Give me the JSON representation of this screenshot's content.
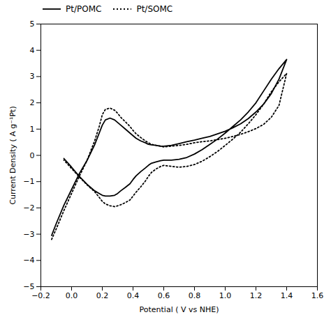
{
  "chart_data": {
    "type": "line",
    "xlabel": "Potential ( V vs NHE)",
    "ylabel": "Current Density ( A g⁻¹Pt)",
    "xlim": [
      -0.2,
      1.6
    ],
    "ylim": [
      -5,
      5
    ],
    "xticks": [
      -0.2,
      {
        "value": 0.0,
        "label": "0.0"
      },
      0.2,
      0.4,
      0.6,
      0.8,
      {
        "value": 1.0,
        "label": "1.0"
      },
      1.2,
      1.4,
      1.6
    ],
    "yticks": [
      -5,
      -4,
      -3,
      -2,
      -1,
      0,
      1,
      2,
      3,
      4,
      5
    ],
    "legend": "upper left",
    "x": [
      -0.13,
      -0.1,
      -0.05,
      0.0,
      0.05,
      0.1,
      0.15,
      0.18,
      0.2,
      0.22,
      0.25,
      0.28,
      0.3,
      0.32,
      0.35,
      0.38,
      0.4,
      0.42,
      0.45,
      0.48,
      0.5,
      0.52,
      0.55,
      0.58,
      0.6,
      0.65,
      0.7,
      0.75,
      0.8,
      0.85,
      0.9,
      0.95,
      1.0,
      1.05,
      1.1,
      1.15,
      1.2,
      1.25,
      1.3,
      1.35,
      1.4,
      1.4,
      1.35,
      1.3,
      1.25,
      1.2,
      1.15,
      1.1,
      1.05,
      1.0,
      0.95,
      0.9,
      0.85,
      0.8,
      0.75,
      0.7,
      0.65,
      0.6,
      0.58,
      0.55,
      0.52,
      0.5,
      0.48,
      0.45,
      0.42,
      0.4,
      0.38,
      0.35,
      0.32,
      0.3,
      0.28,
      0.25,
      0.22,
      0.2,
      0.18,
      0.15,
      0.1,
      0.05,
      0.0,
      -0.05
    ],
    "series": [
      {
        "name": "Pt/POMC",
        "color": "black",
        "line_style": "solid",
        "values": [
          -3.05,
          -2.6,
          -1.9,
          -1.3,
          -0.7,
          -0.2,
          0.4,
          0.85,
          1.15,
          1.35,
          1.42,
          1.35,
          1.25,
          1.15,
          1.0,
          0.85,
          0.75,
          0.65,
          0.55,
          0.48,
          0.42,
          0.4,
          0.38,
          0.35,
          0.35,
          0.38,
          0.45,
          0.52,
          0.58,
          0.65,
          0.72,
          0.82,
          0.92,
          1.05,
          1.2,
          1.4,
          1.65,
          1.95,
          2.35,
          2.9,
          3.65,
          3.65,
          3.3,
          2.9,
          2.45,
          2.0,
          1.65,
          1.35,
          1.1,
          0.85,
          0.62,
          0.42,
          0.22,
          0.05,
          -0.08,
          -0.15,
          -0.18,
          -0.18,
          -0.2,
          -0.25,
          -0.3,
          -0.38,
          -0.48,
          -0.62,
          -0.78,
          -0.92,
          -1.08,
          -1.22,
          -1.35,
          -1.45,
          -1.52,
          -1.55,
          -1.55,
          -1.52,
          -1.45,
          -1.35,
          -1.1,
          -0.8,
          -0.45,
          -0.12
        ]
      },
      {
        "name": "Pt/SOMC",
        "color": "black",
        "line_style": "dotted",
        "values": [
          -3.2,
          -2.8,
          -2.1,
          -1.45,
          -0.8,
          -0.2,
          0.55,
          1.1,
          1.55,
          1.75,
          1.8,
          1.72,
          1.6,
          1.45,
          1.28,
          1.1,
          0.95,
          0.82,
          0.68,
          0.55,
          0.48,
          0.42,
          0.38,
          0.35,
          0.32,
          0.35,
          0.38,
          0.42,
          0.48,
          0.52,
          0.55,
          0.6,
          0.65,
          0.72,
          0.8,
          0.9,
          1.02,
          1.18,
          1.45,
          1.9,
          3.12,
          3.12,
          2.8,
          2.42,
          1.95,
          1.55,
          1.2,
          0.88,
          0.62,
          0.38,
          0.15,
          -0.05,
          -0.22,
          -0.35,
          -0.42,
          -0.45,
          -0.42,
          -0.38,
          -0.42,
          -0.52,
          -0.65,
          -0.8,
          -0.98,
          -1.2,
          -1.4,
          -1.55,
          -1.7,
          -1.8,
          -1.88,
          -1.92,
          -1.95,
          -1.92,
          -1.85,
          -1.75,
          -1.6,
          -1.38,
          -1.12,
          -0.82,
          -0.5,
          -0.18
        ]
      }
    ]
  }
}
